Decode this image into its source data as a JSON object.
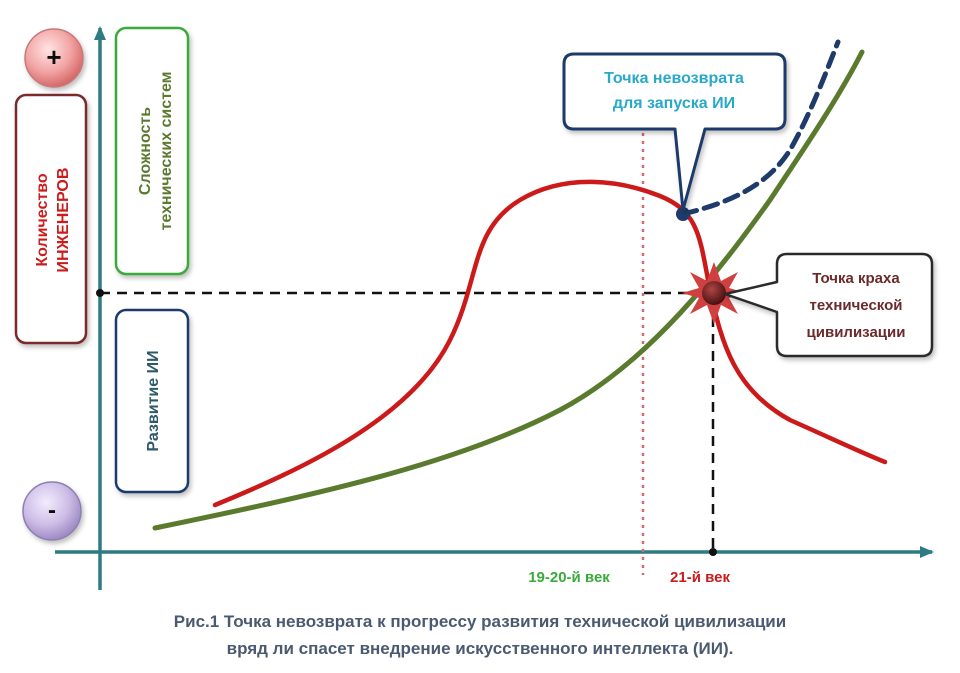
{
  "buttons": {
    "plus": "+",
    "minus": "-"
  },
  "labels": {
    "engineers_line1": "Количество",
    "engineers_line2": "ИНЖЕНЕРОВ",
    "complexity_line1": "Сложность",
    "complexity_line2": "технических систем",
    "ai_development": "Развитие ИИ"
  },
  "callouts": {
    "no_return_line1": "Точка невозврата",
    "no_return_line2": "для запуска ИИ",
    "collapse_line1": "Точка краха",
    "collapse_line2": "технической",
    "collapse_line3": "цивилизации"
  },
  "x_ticks": {
    "tick1": "19-20-й век",
    "tick2": "21-й век"
  },
  "caption": {
    "line1": "Рис.1 Точка невозврата к прогрессу развития технической цивилизации",
    "line2": "вряд ли спасет внедрение искусственного интеллекта (ИИ)."
  },
  "colors": {
    "engineers_curve": "#cc1a1a",
    "complexity_curve": "#5a7a2e",
    "ai_curve_dashed": "#1f3b6b",
    "axes": "#2e7b84",
    "no_return_text": "#29a9c9",
    "collapse_text": "#6b2a2a",
    "tick1_text": "#3aaa3a",
    "tick2_text": "#cc1a1a",
    "caption_text": "#4a5a70"
  }
}
